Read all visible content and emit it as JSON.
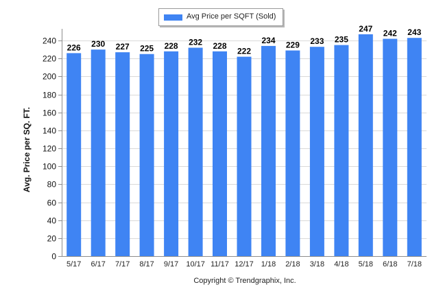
{
  "chart_data": {
    "type": "bar",
    "categories": [
      "5/17",
      "6/17",
      "7/17",
      "8/17",
      "9/17",
      "10/17",
      "11/17",
      "12/17",
      "1/18",
      "2/18",
      "3/18",
      "4/18",
      "5/18",
      "6/18",
      "7/18"
    ],
    "series": [
      {
        "name": "Avg Price per SQFT (Sold)",
        "values": [
          226,
          230,
          227,
          225,
          228,
          232,
          228,
          222,
          234,
          229,
          233,
          235,
          247,
          242,
          243
        ],
        "color": "#3f84f3"
      }
    ],
    "data_labels": [
      "226",
      "230",
      "227",
      "225",
      "228",
      "232",
      "228",
      "222",
      "234",
      "229",
      "233",
      "235",
      "247",
      "242",
      "243"
    ],
    "ylabel": "Avg. Price per SQ. FT.",
    "xlabel": "",
    "ylim": [
      0,
      250
    ],
    "yticks": [
      0,
      20,
      40,
      60,
      80,
      100,
      120,
      140,
      160,
      180,
      200,
      220,
      240
    ],
    "ytick_labels": [
      "0",
      "20",
      "40",
      "60",
      "80",
      "100",
      "120",
      "140",
      "160",
      "180",
      "200",
      "220",
      "240"
    ],
    "grid": true,
    "legend_position": "top-center"
  },
  "legend": {
    "label": "Avg Price per SQFT (Sold)"
  },
  "footer": {
    "copyright": "Copyright © Trendgraphix, Inc."
  },
  "colors": {
    "bar": "#3f84f3",
    "grid": "#d9d9d9",
    "axis": "#8c8c8c"
  }
}
